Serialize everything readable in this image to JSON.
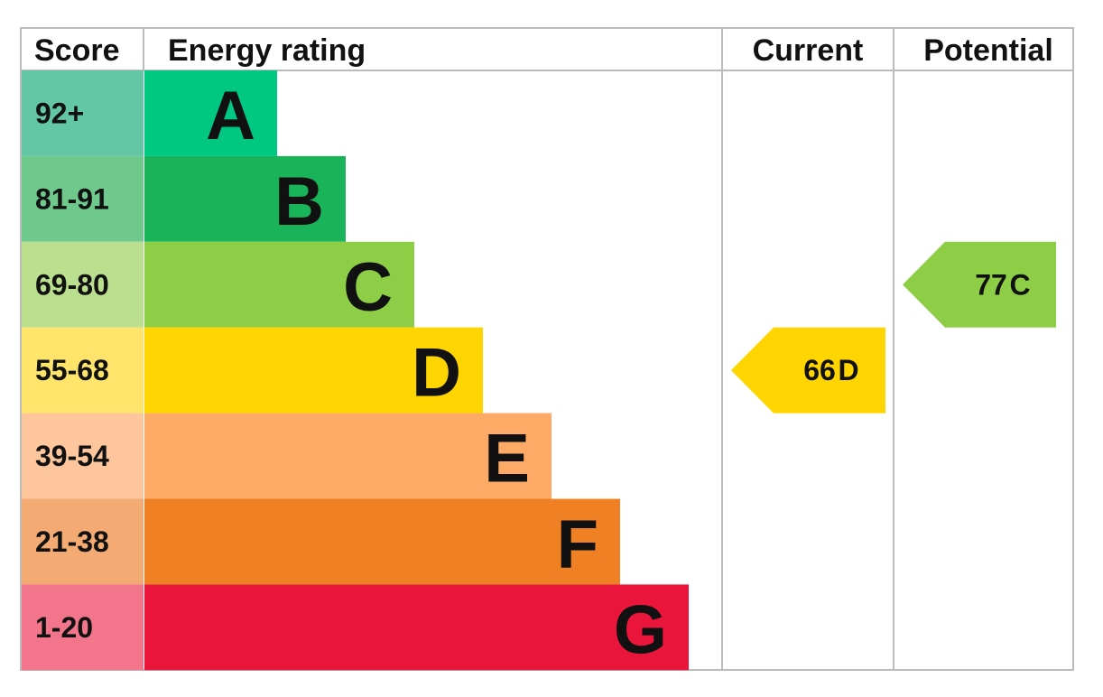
{
  "header": {
    "score": "Score",
    "energy_rating": "Energy rating",
    "current": "Current",
    "potential": "Potential"
  },
  "bands": [
    {
      "score": "92+",
      "letter": "A",
      "color": "#00c781",
      "score_color": "#63c7a6"
    },
    {
      "score": "81-91",
      "letter": "B",
      "color": "#19b459",
      "score_color": "#6fc98c"
    },
    {
      "score": "69-80",
      "letter": "C",
      "color": "#8dce46",
      "score_color": "#b9df8f"
    },
    {
      "score": "55-68",
      "letter": "D",
      "color": "#ffd500",
      "score_color": "#ffe46b"
    },
    {
      "score": "39-54",
      "letter": "E",
      "color": "#fcaa65",
      "score_color": "#fdc69d"
    },
    {
      "score": "21-38",
      "letter": "F",
      "color": "#ef8023",
      "score_color": "#f4aa73"
    },
    {
      "score": "1-20",
      "letter": "G",
      "color": "#e9153b",
      "score_color": "#f2758b"
    }
  ],
  "current": {
    "value": 66,
    "letter": "D",
    "color": "#ffd500"
  },
  "potential": {
    "value": 77,
    "letter": "C",
    "color": "#8dce46"
  }
}
